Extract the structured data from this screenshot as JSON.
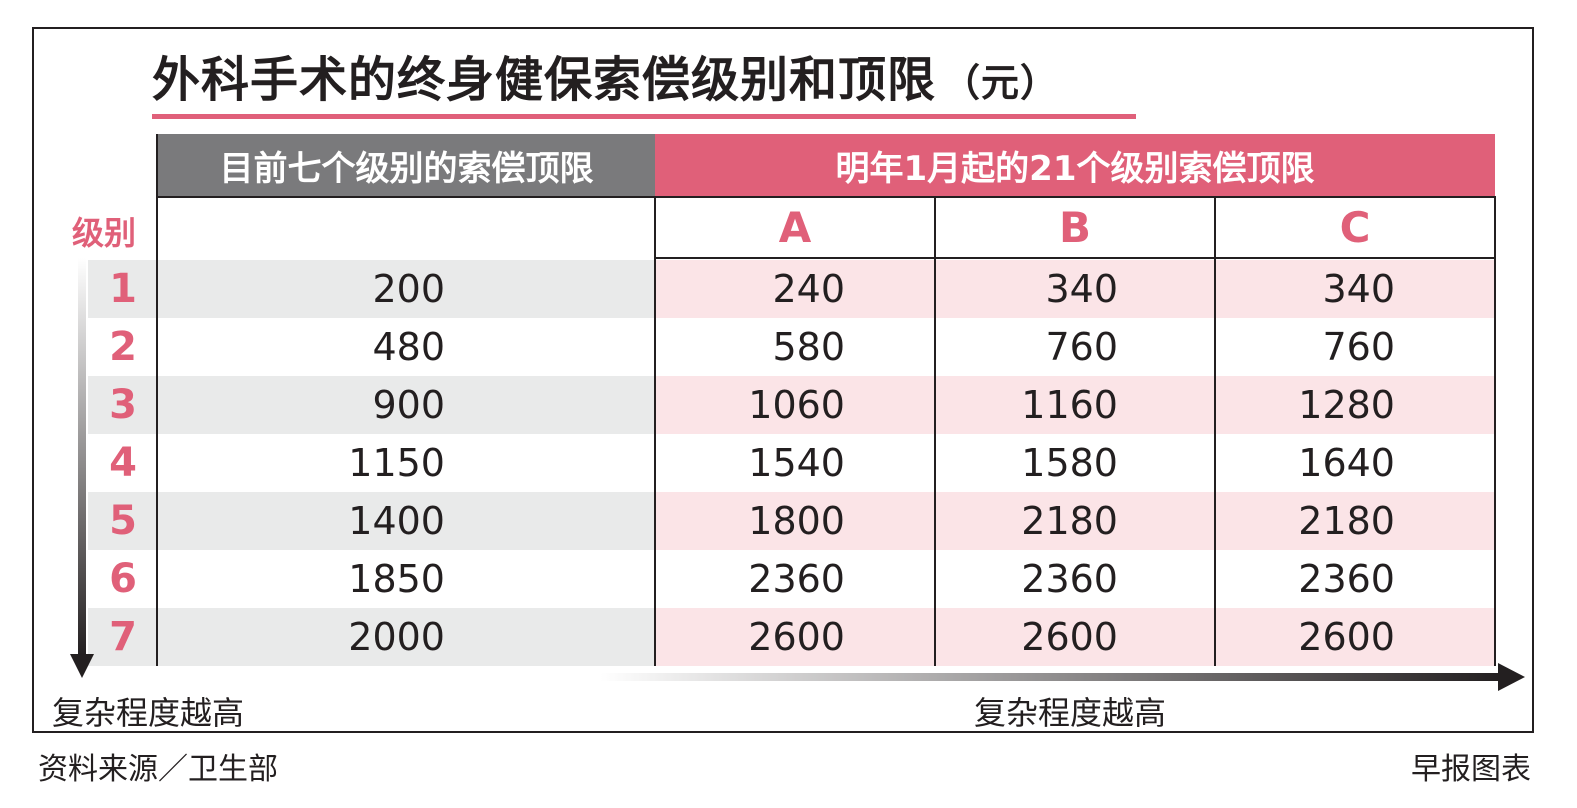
{
  "title": "外科手术的终身健保索偿级别和顶限",
  "unit": "（元）",
  "header_current": "目前七个级别的索偿顶限",
  "header_new": "明年1月起的21个级别索偿顶限",
  "level_header": "级别",
  "sub_headers": [
    "A",
    "B",
    "C"
  ],
  "complexity_label_left": "复杂程度越高",
  "complexity_label_right": "复杂程度越高",
  "source": "资料来源／卫生部",
  "credit": "早报图表",
  "colors": {
    "accent_pink": "#e06079",
    "header_gray": "#7a7a7c",
    "row_shade_gray": "#e9eaea",
    "row_shade_pink": "#fbe4e7",
    "text_dark": "#231f20"
  },
  "chart_data": {
    "type": "table",
    "title": "外科手术的终身健保索偿级别和顶限（元）",
    "columns": [
      "级别",
      "目前七个级别的索偿顶限",
      "A",
      "B",
      "C"
    ],
    "rows": [
      {
        "level": "1",
        "current": "200",
        "A": "240",
        "B": "340",
        "C": "340"
      },
      {
        "level": "2",
        "current": "480",
        "A": "580",
        "B": "760",
        "C": "760"
      },
      {
        "level": "3",
        "current": "900",
        "A": "1060",
        "B": "1160",
        "C": "1280"
      },
      {
        "level": "4",
        "current": "1150",
        "A": "1540",
        "B": "1580",
        "C": "1640"
      },
      {
        "level": "5",
        "current": "1400",
        "A": "1800",
        "B": "2180",
        "C": "2180"
      },
      {
        "level": "6",
        "current": "1850",
        "A": "2360",
        "B": "2360",
        "C": "2360"
      },
      {
        "level": "7",
        "current": "2000",
        "A": "2600",
        "B": "2600",
        "C": "2600"
      }
    ]
  }
}
